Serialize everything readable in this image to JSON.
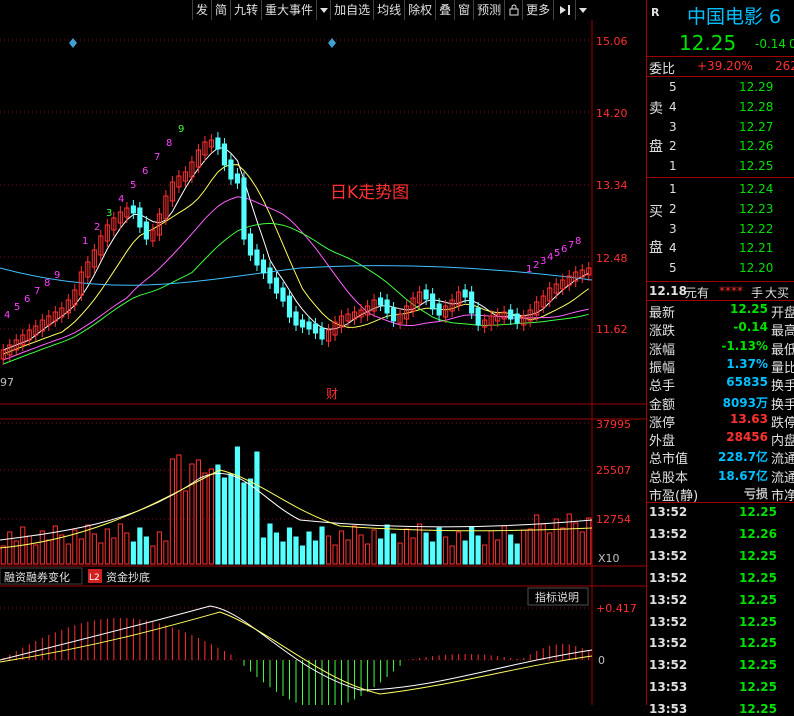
{
  "toolbar": {
    "items": [
      "发",
      "简",
      "九转",
      "重大事件",
      "",
      "加自选",
      "均线",
      "除权",
      "叠",
      "窗",
      "预测",
      "",
      "更多",
      ""
    ],
    "r_mark": "R"
  },
  "kchart": {
    "title": "日K走势图",
    "price_ticks": [
      "15.06",
      "14.20",
      "13.34",
      "12.48",
      "11.62"
    ],
    "date_fragment": "97",
    "event_marker": "财",
    "nine_turn_up": [
      "4",
      "5",
      "6",
      "7",
      "8",
      "9"
    ],
    "nine_turn_down": [
      "1",
      "2",
      "3",
      "4",
      "5",
      "6",
      "7",
      "8",
      "9"
    ],
    "top_seq": [
      "1",
      "2",
      "3",
      "4",
      "5",
      "6",
      "7",
      "8",
      "9"
    ],
    "recent_seq": [
      "1",
      "2",
      "3",
      "4",
      "5",
      "6",
      "7",
      "8"
    ]
  },
  "volume": {
    "ticks": [
      "37995",
      "25507",
      "12754"
    ],
    "unit": "X10",
    "tabs": [
      "融资融券变化",
      "L2",
      "资金抄底"
    ]
  },
  "macd": {
    "ticks": [
      "+0.417",
      "0"
    ],
    "button": "指标说明"
  },
  "quote": {
    "name": "中国电影 6",
    "price": "12.25",
    "change": "-0.14",
    "change_cut": "0",
    "weibi_label": "委比",
    "weibi_value": "+39.20%",
    "weibi_cut": "262",
    "sell_label": [
      "卖",
      "盘"
    ],
    "buy_label": [
      "买",
      "盘"
    ],
    "asks": [
      {
        "level": "5",
        "price": "12.29"
      },
      {
        "level": "4",
        "price": "12.28"
      },
      {
        "level": "3",
        "price": "12.27"
      },
      {
        "level": "2",
        "price": "12.26"
      },
      {
        "level": "1",
        "price": "12.25"
      }
    ],
    "bids": [
      {
        "level": "1",
        "price": "12.24"
      },
      {
        "level": "2",
        "price": "12.23"
      },
      {
        "level": "3",
        "price": "12.22"
      },
      {
        "level": "4",
        "price": "12.21"
      },
      {
        "level": "5",
        "price": "12.20"
      }
    ],
    "big_order_price": "12.18",
    "big_order_unit": "元有",
    "big_order_hidden": "****",
    "big_order_text": "手",
    "big_order_tail": "大买",
    "stats": [
      {
        "label": "最新",
        "value": "12.25",
        "color": "#00e000",
        "right": "开盘"
      },
      {
        "label": "涨跌",
        "value": "-0.14",
        "color": "#00e000",
        "right": "最高"
      },
      {
        "label": "涨幅",
        "value": "-1.13%",
        "color": "#00e000",
        "right": "最低"
      },
      {
        "label": "振幅",
        "value": "1.37%",
        "color": "#00c0ff",
        "right": "量比"
      },
      {
        "label": "总手",
        "value": "65835",
        "color": "#00c0ff",
        "right": "换手"
      },
      {
        "label": "金额",
        "value": "8093万",
        "color": "#00c0ff",
        "right": "换手"
      },
      {
        "label": "涨停",
        "value": "13.63",
        "color": "#ff3030",
        "right": "跌停"
      },
      {
        "label": "外盘",
        "value": "28456",
        "color": "#ff3030",
        "right": "内盘"
      },
      {
        "label": "总市值",
        "value": "228.7亿",
        "color": "#00c0ff",
        "right": "流通"
      },
      {
        "label": "总股本",
        "value": "18.67亿",
        "color": "#00c0ff",
        "right": "流通"
      },
      {
        "label": "市盈(静)",
        "value": "亏损",
        "color": "#c0c0c0",
        "right": "市净"
      }
    ],
    "trades": [
      {
        "time": "13:52",
        "price": "12.25",
        "color": "#00e000"
      },
      {
        "time": "13:52",
        "price": "12.26",
        "color": "#00e000"
      },
      {
        "time": "13:52",
        "price": "12.25",
        "color": "#00e000"
      },
      {
        "time": "13:52",
        "price": "12.25",
        "color": "#00e000"
      },
      {
        "time": "13:52",
        "price": "12.25",
        "color": "#00e000"
      },
      {
        "time": "13:52",
        "price": "12.25",
        "color": "#00e000"
      },
      {
        "time": "13:52",
        "price": "12.25",
        "color": "#00e000"
      },
      {
        "time": "13:52",
        "price": "12.25",
        "color": "#00e000"
      },
      {
        "time": "13:53",
        "price": "12.25",
        "color": "#00e000"
      },
      {
        "time": "13:53",
        "price": "12.25",
        "color": "#00e000"
      }
    ]
  },
  "colors": {
    "up": "#ff3030",
    "down": "#54ffff",
    "axis": "#a00000",
    "grid": "#801010",
    "accent_text": "#00c0ff",
    "nine_up": "#ff40ff",
    "nine_down": "#40ff40"
  }
}
